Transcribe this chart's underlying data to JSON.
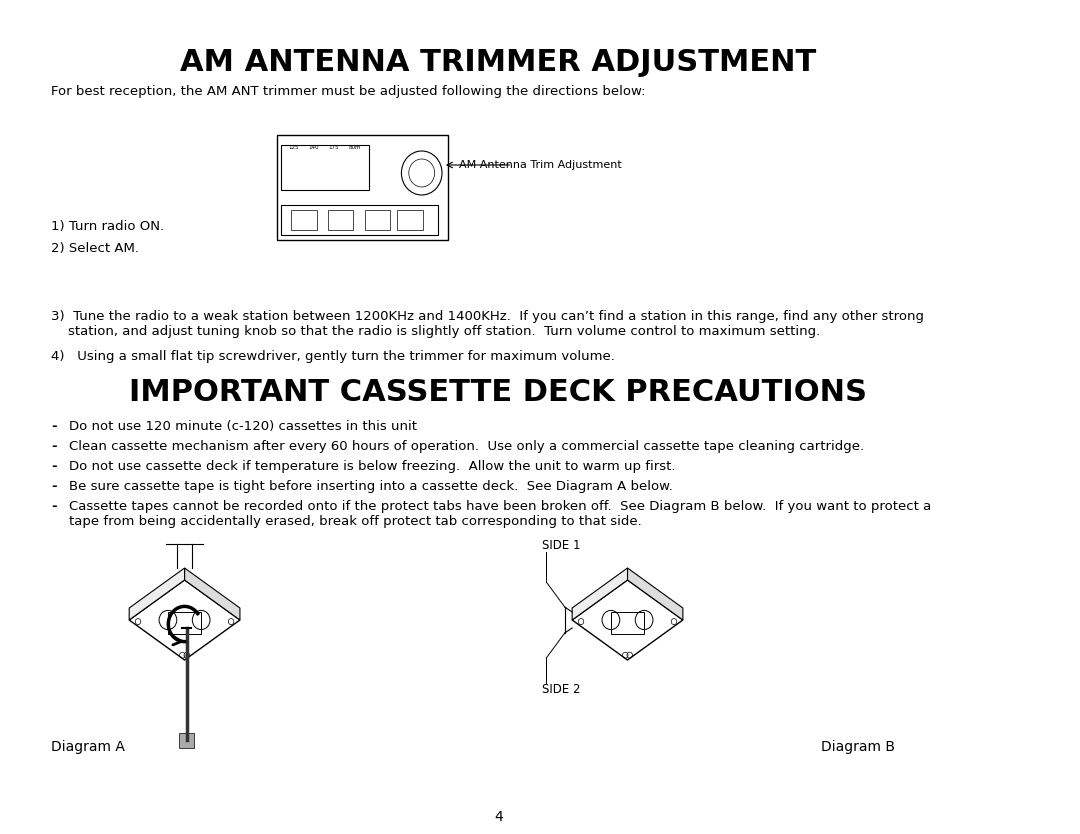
{
  "title": "AM ANTENNA TRIMMER ADJUSTMENT",
  "title_fontsize": 22,
  "title_bold": true,
  "bg_color": "#ffffff",
  "text_color": "#000000",
  "subtitle": "For best reception, the AM ANT trimmer must be adjusted following the directions below:",
  "steps_left": [
    "1) Turn radio ON.",
    "2) Select AM."
  ],
  "step3": "3)  Tune the radio to a weak station between 1200KHz and 1400KHz.  If you can’t find a station in this range, find any other strong\n    station, and adjust tuning knob so that the radio is slightly off station.  Turn volume control to maximum setting.",
  "step4": "4)   Using a small flat tip screwdriver, gently turn the trimmer for maximum volume.",
  "section2_title": "IMPORTANT CASSETTE DECK PRECAUTIONS",
  "bullets": [
    "Do not use 120 minute (c-120) cassettes in this unit",
    "Clean cassette mechanism after every 60 hours of operation.  Use only a commercial cassette tape cleaning cartridge.",
    "Do not use cassette deck if temperature is below freezing.  Allow the unit to warm up first.",
    "Be sure cassette tape is tight before inserting into a cassette deck.  See Diagram A below.",
    "Cassette tapes cannot be recorded onto if the protect tabs have been broken off.  See Diagram B below.  If you want to protect a\ntape from being accidentally erased, break off protect tab corresponding to that side."
  ],
  "diagram_a_label": "Diagram A",
  "diagram_b_label": "Diagram B",
  "side1_label": "SIDE 1",
  "side2_label": "SIDE 2",
  "page_number": "4",
  "antenna_label": "AM Antenna Trim Adjustment"
}
